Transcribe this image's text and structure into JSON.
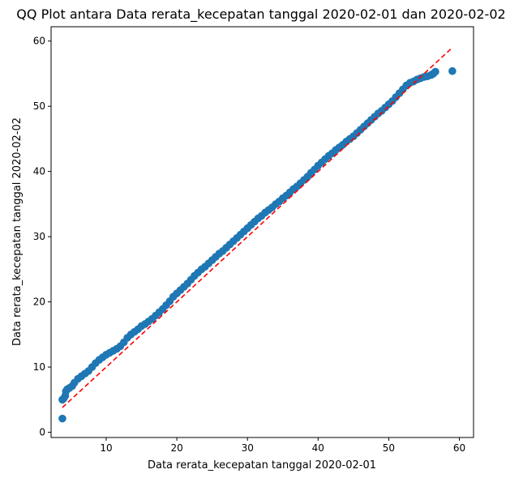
{
  "chart_data": {
    "type": "scatter",
    "title": "QQ Plot antara Data rerata_kecepatan tanggal 2020-02-01 dan 2020-02-02",
    "xlabel": "Data rerata_kecepatan tanggal 2020-02-01",
    "ylabel": "Data rerata_kecepatan tanggal 2020-02-02",
    "xlim": [
      2.2,
      62.0
    ],
    "ylim": [
      -0.8,
      62.2
    ],
    "xticks": [
      10,
      20,
      30,
      40,
      50,
      60
    ],
    "yticks": [
      0,
      10,
      20,
      30,
      40,
      50,
      60
    ],
    "grid": false,
    "marker_color": "#1f77b4",
    "reference_line": {
      "x": [
        3.8,
        59.0
      ],
      "y": [
        3.8,
        59.0
      ],
      "style": "dashed",
      "color": "#ff0000"
    },
    "series": [
      {
        "points": [
          [
            3.8,
            2.1
          ],
          [
            3.8,
            5.0
          ],
          [
            4.0,
            5.2
          ],
          [
            4.2,
            5.6
          ],
          [
            4.3,
            6.3
          ],
          [
            4.5,
            6.6
          ],
          [
            4.8,
            6.8
          ],
          [
            5.2,
            7.1
          ],
          [
            5.5,
            7.6
          ],
          [
            6.0,
            8.2
          ],
          [
            6.5,
            8.6
          ],
          [
            7.0,
            9.0
          ],
          [
            7.5,
            9.4
          ],
          [
            8.0,
            10.0
          ],
          [
            8.5,
            10.6
          ],
          [
            9.0,
            11.1
          ],
          [
            9.5,
            11.5
          ],
          [
            10.0,
            11.9
          ],
          [
            10.5,
            12.2
          ],
          [
            11.0,
            12.5
          ],
          [
            11.5,
            12.8
          ],
          [
            12.0,
            13.2
          ],
          [
            12.5,
            13.8
          ],
          [
            13.0,
            14.5
          ],
          [
            13.5,
            15.0
          ],
          [
            14.0,
            15.4
          ],
          [
            14.5,
            15.8
          ],
          [
            15.0,
            16.3
          ],
          [
            15.5,
            16.6
          ],
          [
            16.0,
            17.0
          ],
          [
            16.5,
            17.4
          ],
          [
            17.0,
            17.9
          ],
          [
            17.5,
            18.4
          ],
          [
            18.0,
            18.9
          ],
          [
            18.5,
            19.5
          ],
          [
            19.0,
            20.1
          ],
          [
            19.5,
            20.8
          ],
          [
            20.0,
            21.3
          ],
          [
            20.5,
            21.8
          ],
          [
            21.0,
            22.3
          ],
          [
            21.5,
            22.8
          ],
          [
            22.0,
            23.4
          ],
          [
            22.5,
            24.0
          ],
          [
            23.0,
            24.5
          ],
          [
            23.5,
            25.0
          ],
          [
            24.0,
            25.4
          ],
          [
            24.5,
            25.9
          ],
          [
            25.0,
            26.4
          ],
          [
            25.5,
            26.9
          ],
          [
            26.0,
            27.4
          ],
          [
            26.5,
            27.8
          ],
          [
            27.0,
            28.3
          ],
          [
            27.5,
            28.8
          ],
          [
            28.0,
            29.3
          ],
          [
            28.5,
            29.8
          ],
          [
            29.0,
            30.3
          ],
          [
            29.5,
            30.8
          ],
          [
            30.0,
            31.3
          ],
          [
            30.5,
            31.8
          ],
          [
            31.0,
            32.3
          ],
          [
            31.5,
            32.8
          ],
          [
            32.0,
            33.2
          ],
          [
            32.5,
            33.7
          ],
          [
            33.0,
            34.1
          ],
          [
            33.5,
            34.5
          ],
          [
            34.0,
            35.0
          ],
          [
            34.5,
            35.4
          ],
          [
            35.0,
            35.9
          ],
          [
            35.5,
            36.3
          ],
          [
            36.0,
            36.8
          ],
          [
            36.5,
            37.3
          ],
          [
            37.0,
            37.7
          ],
          [
            37.5,
            38.2
          ],
          [
            38.0,
            38.7
          ],
          [
            38.5,
            39.2
          ],
          [
            39.0,
            39.8
          ],
          [
            39.5,
            40.3
          ],
          [
            40.0,
            40.9
          ],
          [
            40.5,
            41.4
          ],
          [
            41.0,
            41.9
          ],
          [
            41.5,
            42.4
          ],
          [
            42.0,
            42.8
          ],
          [
            42.5,
            43.3
          ],
          [
            43.0,
            43.7
          ],
          [
            43.5,
            44.1
          ],
          [
            44.0,
            44.6
          ],
          [
            44.5,
            45.0
          ],
          [
            45.0,
            45.4
          ],
          [
            45.5,
            45.9
          ],
          [
            46.0,
            46.4
          ],
          [
            46.5,
            46.9
          ],
          [
            47.0,
            47.4
          ],
          [
            47.5,
            47.9
          ],
          [
            48.0,
            48.4
          ],
          [
            48.5,
            48.9
          ],
          [
            49.0,
            49.3
          ],
          [
            49.5,
            49.8
          ],
          [
            50.0,
            50.3
          ],
          [
            50.5,
            50.8
          ],
          [
            51.0,
            51.4
          ],
          [
            51.5,
            52.0
          ],
          [
            52.0,
            52.6
          ],
          [
            52.5,
            53.2
          ],
          [
            53.0,
            53.6
          ],
          [
            53.5,
            53.8
          ],
          [
            54.0,
            54.1
          ],
          [
            54.5,
            54.3
          ],
          [
            55.0,
            54.5
          ],
          [
            55.5,
            54.6
          ],
          [
            56.0,
            54.8
          ],
          [
            56.3,
            55.0
          ],
          [
            56.6,
            55.3
          ],
          [
            59.0,
            55.4
          ]
        ]
      }
    ]
  }
}
